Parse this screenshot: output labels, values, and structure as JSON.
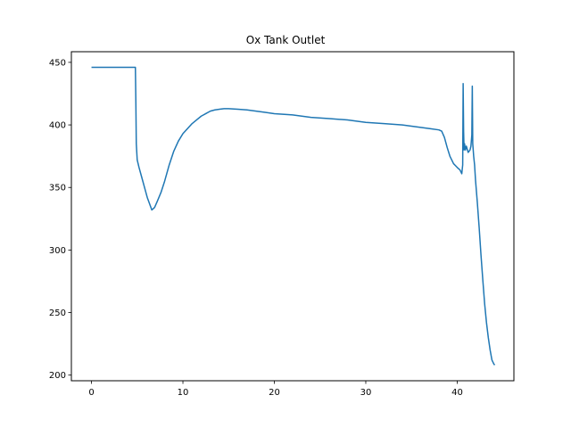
{
  "chart_data": {
    "type": "line",
    "title": "Ox Tank Outlet",
    "xlabel": "",
    "ylabel": "",
    "xlim": [
      -2.2,
      46.2
    ],
    "ylim": [
      195.5,
      458.5
    ],
    "xticks": [
      0,
      10,
      20,
      30,
      40
    ],
    "yticks": [
      200,
      250,
      300,
      350,
      400,
      450
    ],
    "grid": false,
    "line_color": "#1f77b4",
    "series": [
      {
        "x": [
          0,
          0.5,
          1,
          1.5,
          2,
          2.5,
          3,
          3.5,
          4,
          4.5,
          4.8,
          4.85,
          4.9,
          5.0,
          5.2,
          5.5,
          5.8,
          6.1,
          6.4,
          6.6,
          6.9,
          7.2,
          7.6,
          8.0,
          8.5,
          9.0,
          9.5,
          10.0,
          10.5,
          11.0,
          11.5,
          12.0,
          12.5,
          13.0,
          13.5,
          14.0,
          14.5,
          15.0,
          16.0,
          17.0,
          18.0,
          19.0,
          20.0,
          22.0,
          24.0,
          26.0,
          28.0,
          30.0,
          32.0,
          34.0,
          36.0,
          37.0,
          38.0,
          38.3,
          38.6,
          38.9,
          39.2,
          39.6,
          40.0,
          40.3,
          40.5,
          40.6,
          40.65,
          40.7,
          40.75,
          40.8,
          40.9,
          41.0,
          41.2,
          41.4,
          41.5,
          41.6,
          41.65,
          41.7,
          41.75,
          41.8,
          41.9,
          42.0,
          42.2,
          42.4,
          42.6,
          42.8,
          43.0,
          43.2,
          43.4,
          43.6,
          43.8,
          44.0,
          44.1
        ],
        "y": [
          446,
          446,
          446,
          446,
          446,
          446,
          446,
          446,
          446,
          446,
          446,
          420,
          385,
          372,
          366,
          358,
          350,
          342,
          336,
          332,
          334,
          339,
          346,
          355,
          368,
          379,
          387,
          393,
          397,
          401,
          404,
          407,
          409,
          411,
          412,
          412.5,
          413,
          413,
          412.5,
          412,
          411,
          410,
          409,
          408,
          406,
          405,
          404,
          402,
          401,
          400,
          398,
          397,
          396,
          395,
          390,
          382,
          375,
          369,
          366,
          364,
          361,
          368,
          433,
          395,
          380,
          385,
          380,
          383,
          378,
          380,
          383,
          392,
          431,
          385,
          380,
          375,
          368,
          356,
          338,
          318,
          296,
          276,
          257,
          242,
          230,
          220,
          212,
          209,
          208
        ]
      }
    ]
  }
}
